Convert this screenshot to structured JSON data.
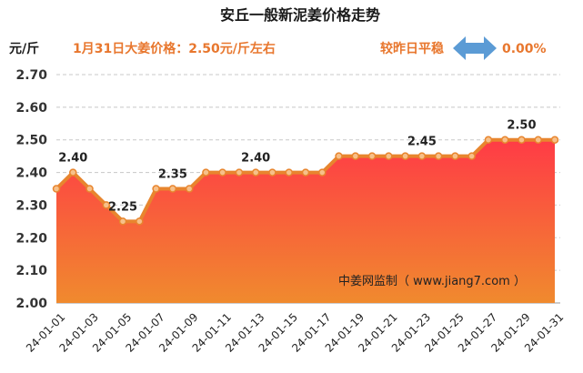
{
  "header": {
    "title": "安丘一般新泥姜价格走势",
    "unit": "元/斤",
    "price_text": "1月31日大姜价格：2.50元/斤左右",
    "compare_label": "较昨日平稳",
    "compare_value": "0.00%",
    "compare_icon": "double-arrow-icon"
  },
  "watermark": "中姜网监制（ www.jiang7.com ）",
  "colors": {
    "line": "#e8852e",
    "area_top": "#ff3b46",
    "area_bottom": "#f08a2e",
    "marker_fill": "#f7c089",
    "accent_text": "#e8772e",
    "arrow": "#5b9bd5"
  },
  "chart_data": {
    "type": "area",
    "title": "安丘一般新泥姜价格走势",
    "ylabel": "元/斤",
    "ylim": [
      2.0,
      2.7
    ],
    "yticks": [
      "2.00",
      "2.10",
      "2.20",
      "2.30",
      "2.40",
      "2.50",
      "2.60",
      "2.70"
    ],
    "grid": true,
    "x": [
      "24-01-01",
      "24-01-02",
      "24-01-03",
      "24-01-04",
      "24-01-05",
      "24-01-06",
      "24-01-07",
      "24-01-08",
      "24-01-09",
      "24-01-10",
      "24-01-11",
      "24-01-12",
      "24-01-13",
      "24-01-14",
      "24-01-15",
      "24-01-16",
      "24-01-17",
      "24-01-18",
      "24-01-19",
      "24-01-20",
      "24-01-21",
      "24-01-22",
      "24-01-23",
      "24-01-24",
      "24-01-25",
      "24-01-26",
      "24-01-27",
      "24-01-28",
      "24-01-29",
      "24-01-30",
      "24-01-31"
    ],
    "x_tick_labels": [
      "24-01-01",
      "24-01-03",
      "24-01-05",
      "24-01-07",
      "24-01-09",
      "24-01-11",
      "24-01-13",
      "24-01-15",
      "24-01-17",
      "24-01-19",
      "24-01-21",
      "24-01-23",
      "24-01-25",
      "24-01-27",
      "24-01-29",
      "24-01-31"
    ],
    "values": [
      2.35,
      2.4,
      2.35,
      2.3,
      2.25,
      2.25,
      2.35,
      2.35,
      2.35,
      2.4,
      2.4,
      2.4,
      2.4,
      2.4,
      2.4,
      2.4,
      2.4,
      2.45,
      2.45,
      2.45,
      2.45,
      2.45,
      2.45,
      2.45,
      2.45,
      2.45,
      2.5,
      2.5,
      2.5,
      2.5,
      2.5
    ],
    "data_labels": [
      {
        "x": "24-01-02",
        "text": "2.40"
      },
      {
        "x": "24-01-05",
        "text": "2.25"
      },
      {
        "x": "24-01-08",
        "text": "2.35"
      },
      {
        "x": "24-01-13",
        "text": "2.40"
      },
      {
        "x": "24-01-23",
        "text": "2.45"
      },
      {
        "x": "24-01-29",
        "text": "2.50"
      }
    ]
  }
}
